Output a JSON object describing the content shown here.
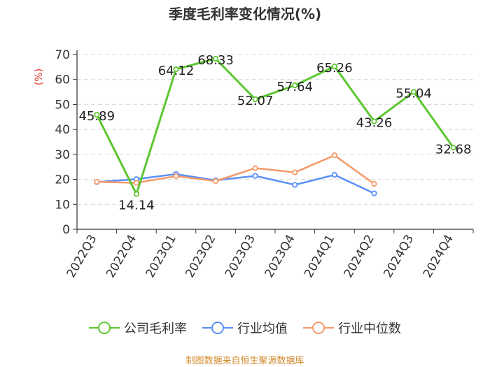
{
  "chart_data": {
    "type": "line",
    "title": "季度毛利率变化情况(%)",
    "ylabel": "(%)",
    "xlabel": "",
    "ylim": [
      0,
      70
    ],
    "yticks": [
      0,
      10,
      20,
      30,
      40,
      50,
      60,
      70
    ],
    "categories": [
      "2022Q3",
      "2022Q4",
      "2023Q1",
      "2023Q2",
      "2023Q3",
      "2023Q4",
      "2024Q1",
      "2024Q2",
      "2024Q3",
      "2024Q4"
    ],
    "grid": true,
    "legend_position": "bottom",
    "series": [
      {
        "name": "公司毛利率",
        "color": "#5dc731",
        "values": [
          45.89,
          14.14,
          64.12,
          68.33,
          52.07,
          57.64,
          65.26,
          43.26,
          55.04,
          32.68
        ],
        "data_labels": [
          "45.89",
          "14.14",
          "64.12",
          "68.33",
          "52.07",
          "57.64",
          "65.26",
          "43.26",
          "55.04",
          "32.68"
        ]
      },
      {
        "name": "行业均值",
        "color": "#5b8ff9",
        "values": [
          18.9,
          20.1,
          22.1,
          19.6,
          21.4,
          17.8,
          21.8,
          14.4,
          null,
          null
        ]
      },
      {
        "name": "行业中位数",
        "color": "#f59a6a",
        "values": [
          19.0,
          18.6,
          21.3,
          19.3,
          24.5,
          22.8,
          29.6,
          18.2,
          null,
          null
        ]
      }
    ]
  },
  "footer": {
    "source": "制图数据来自恒生聚源数据库"
  }
}
